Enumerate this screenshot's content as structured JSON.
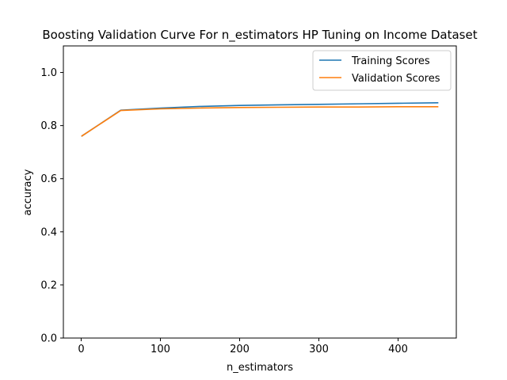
{
  "chart_data": {
    "type": "line",
    "title": "Boosting Validation Curve For n_estimators HP Tuning on Income Dataset",
    "xlabel": "n_estimators",
    "ylabel": "accuracy",
    "x": [
      1,
      50,
      100,
      150,
      200,
      250,
      300,
      350,
      400,
      450
    ],
    "xlim": [
      -22.45,
      473.45
    ],
    "ylim": [
      0.0,
      1.1
    ],
    "xticks": [
      0,
      100,
      200,
      300,
      400
    ],
    "yticks": [
      0.0,
      0.2,
      0.4,
      0.6,
      0.8,
      1.0
    ],
    "xtick_labels": [
      "0",
      "100",
      "200",
      "300",
      "400"
    ],
    "ytick_labels": [
      "0.0",
      "0.2",
      "0.4",
      "0.6",
      "0.8",
      "1.0"
    ],
    "grid": false,
    "legend_position": "upper right",
    "series": [
      {
        "name": "Training Scores",
        "color": "#1f77b4",
        "values": [
          0.761,
          0.858,
          0.866,
          0.872,
          0.876,
          0.878,
          0.88,
          0.882,
          0.884,
          0.886
        ]
      },
      {
        "name": "Validation Scores",
        "color": "#ff7f0e",
        "values": [
          0.761,
          0.857,
          0.863,
          0.866,
          0.868,
          0.869,
          0.87,
          0.87,
          0.871,
          0.871
        ]
      }
    ]
  }
}
